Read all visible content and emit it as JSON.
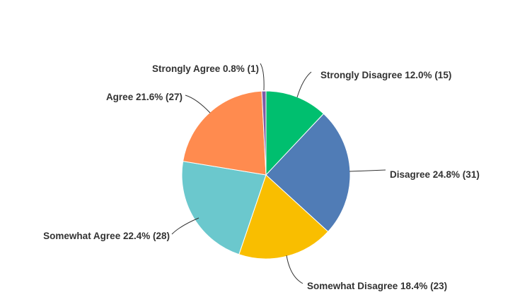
{
  "chart_data": {
    "type": "pie",
    "start": "top",
    "direction": "clockwise",
    "slices": [
      {
        "label": "Strongly Disagree",
        "percent": 12.0,
        "count": 15,
        "color": "#00bf6f"
      },
      {
        "label": "Disagree",
        "percent": 24.8,
        "count": 31,
        "color": "#507cb6"
      },
      {
        "label": "Somewhat Disagree",
        "percent": 18.4,
        "count": 23,
        "color": "#f9be00"
      },
      {
        "label": "Somewhat Agree",
        "percent": 22.4,
        "count": 28,
        "color": "#6bc8cd"
      },
      {
        "label": "Agree",
        "percent": 21.6,
        "count": 27,
        "color": "#ff8b4f"
      },
      {
        "label": "Strongly Agree",
        "percent": 0.8,
        "count": 1,
        "color": "#7d5ba6"
      }
    ]
  }
}
